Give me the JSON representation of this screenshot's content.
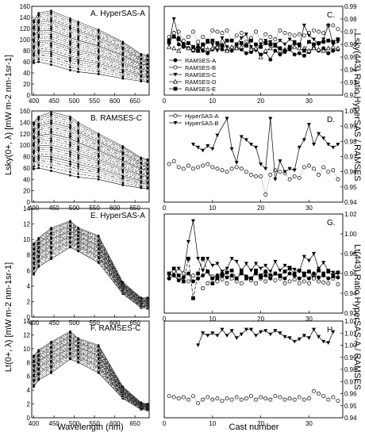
{
  "figure": {
    "left_ylabel_top": "Lsky(0+, λ) [mW m-2 nm-1sr-1]",
    "left_ylabel_bottom": "Lt(0+, λ) [mW m-2 nm-1sr-1]",
    "left_xlabel": "Wavelength (nm)",
    "right_ylabel_top": "Lsky(443) Ratio HyperSAS / RAMSES",
    "right_ylabel_bottom": "Lt(443) Ratio HyperSAS-A / RAMSES",
    "right_xlabel": "Cast number"
  },
  "chart_data": [
    {
      "id": "A",
      "type": "line",
      "title": "A. HyperSAS-A",
      "x_ticks": [
        400,
        450,
        500,
        550,
        600,
        650
      ],
      "y_ticks": [
        0,
        20,
        40,
        60,
        80,
        100,
        120,
        140,
        160
      ],
      "xlim": [
        395,
        685
      ],
      "ylim": [
        0,
        160
      ],
      "x": [
        400,
        412,
        443,
        490,
        510,
        560,
        620,
        665,
        681
      ],
      "series_envelope": {
        "min": [
          58,
          60,
          55,
          45,
          42,
          38,
          30,
          25,
          24
        ],
        "max": [
          135,
          148,
          152,
          138,
          132,
          118,
          96,
          74,
          72
        ]
      }
    },
    {
      "id": "B",
      "type": "line",
      "title": "B. RAMSES-C",
      "x_ticks": [
        400,
        450,
        500,
        550,
        600,
        650
      ],
      "y_ticks": [
        0,
        20,
        40,
        60,
        80,
        100,
        120,
        140,
        160
      ],
      "xlim": [
        395,
        685
      ],
      "ylim": [
        0,
        160
      ],
      "x": [
        400,
        412,
        443,
        490,
        510,
        560,
        620,
        665,
        681
      ],
      "series_envelope": {
        "min": [
          58,
          60,
          55,
          47,
          44,
          40,
          30,
          25,
          24
        ],
        "max": [
          140,
          150,
          158,
          150,
          140,
          120,
          98,
          78,
          75
        ]
      }
    },
    {
      "id": "E",
      "type": "line",
      "title": "E. HyperSAS-A",
      "x_ticks": [
        400,
        450,
        500,
        550,
        600,
        650
      ],
      "y_ticks": [
        0,
        2,
        4,
        6,
        8,
        10,
        12,
        14
      ],
      "xlim": [
        395,
        685
      ],
      "ylim": [
        0,
        14
      ],
      "x": [
        400,
        412,
        443,
        490,
        510,
        560,
        620,
        665,
        681
      ],
      "series_envelope": {
        "min": [
          5.5,
          6.5,
          7.5,
          9.0,
          8.5,
          7.0,
          3.0,
          1.2,
          1.1
        ],
        "max": [
          9.5,
          10.2,
          11.5,
          12.4,
          11.5,
          10.5,
          4.5,
          2.5,
          2.5
        ]
      }
    },
    {
      "id": "F",
      "type": "line",
      "title": "F. RAMSES-C",
      "x_ticks": [
        400,
        450,
        500,
        550,
        600,
        650
      ],
      "y_ticks": [
        0,
        2,
        4,
        6,
        8,
        10,
        12,
        14
      ],
      "xlim": [
        395,
        685
      ],
      "ylim": [
        0,
        14
      ],
      "x": [
        400,
        412,
        443,
        490,
        510,
        560,
        620,
        665,
        681
      ],
      "series_envelope": {
        "min": [
          4.5,
          5.5,
          6.5,
          8.5,
          8.0,
          6.5,
          2.8,
          1.2,
          1.1
        ],
        "max": [
          9.0,
          9.8,
          11.0,
          12.5,
          11.5,
          10.5,
          4.5,
          2.2,
          2.0
        ]
      }
    },
    {
      "id": "C",
      "type": "line",
      "title": "C.",
      "x_ticks": [
        0,
        10,
        20,
        30
      ],
      "y_ticks": [
        0.92,
        0.93,
        0.94,
        0.95,
        0.96,
        0.97,
        0.98,
        0.99
      ],
      "xlim": [
        0,
        37
      ],
      "ylim": [
        0.92,
        0.99
      ],
      "x": [
        1,
        2,
        3,
        4,
        5,
        6,
        7,
        8,
        9,
        10,
        11,
        12,
        13,
        14,
        15,
        16,
        17,
        18,
        19,
        20,
        21,
        22,
        23,
        24,
        25,
        26,
        27,
        28,
        29,
        30,
        31,
        32,
        33,
        34,
        35,
        36
      ],
      "legend": [
        "RAMSES-A",
        "RAMSES-B",
        "RAMSES-C",
        "RAMSES-D",
        "RAMSES-E"
      ],
      "series": [
        {
          "name": "RAMSES-A",
          "marker": "circle-filled",
          "values": [
            0.961,
            0.969,
            0.96,
            0.958,
            0.957,
            0.955,
            0.958,
            0.955,
            0.953,
            0.956,
            0.958,
            0.956,
            0.955,
            0.955,
            0.957,
            0.956,
            0.953,
            0.954,
            0.956,
            0.952,
            0.954,
            0.948,
            0.955,
            0.952,
            0.954,
            0.956,
            0.952,
            0.953,
            0.951,
            0.954,
            0.957,
            0.955,
            0.957,
            0.953,
            0.955,
            0.956
          ]
        },
        {
          "name": "RAMSES-B",
          "marker": "circle-open",
          "values": [
            0.966,
            0.969,
            0.97,
            0.963,
            0.966,
            0.97,
            0.962,
            0.966,
            0.963,
            0.971,
            0.97,
            0.969,
            0.971,
            0.963,
            0.967,
            0.969,
            0.962,
            0.965,
            0.97,
            0.963,
            0.968,
            0.966,
            0.964,
            0.971,
            0.969,
            0.968,
            0.967,
            0.968,
            0.967,
            0.969,
            0.971,
            0.97,
            0.969,
            0.975,
            0.975,
            0.972
          ]
        },
        {
          "name": "RAMSES-C",
          "marker": "triangle-down-filled",
          "values": [
            0.961,
            0.98,
            0.965,
            0.96,
            0.957,
            0.955,
            0.959,
            0.957,
            0.963,
            0.96,
            0.955,
            0.965,
            0.958,
            0.957,
            0.96,
            0.965,
            0.968,
            0.958,
            0.955,
            0.96,
            0.963,
            0.962,
            0.96,
            0.963,
            0.96,
            0.964,
            0.962,
            0.958,
            0.975,
            0.967,
            0.964,
            0.96,
            0.964,
            0.975,
            0.96,
            0.962
          ]
        },
        {
          "name": "RAMSES-D",
          "marker": "triangle-up-open",
          "values": [
            0.958,
            0.957,
            0.955,
            0.96,
            0.957,
            0.956,
            0.955,
            0.958,
            0.956,
            0.957,
            0.958,
            0.96,
            0.955,
            0.958,
            0.957,
            0.958,
            0.96,
            0.956,
            0.957,
            0.95,
            0.955,
            0.957,
            0.959,
            0.955,
            0.956,
            0.958,
            0.958,
            0.957,
            0.957,
            0.955,
            0.957,
            0.956,
            0.955,
            0.957,
            0.958,
            0.957
          ]
        },
        {
          "name": "RAMSES-E",
          "marker": "square-filled",
          "values": [
            0.963,
            0.966,
            0.964,
            0.96,
            0.961,
            0.958,
            0.955,
            0.96,
            0.962,
            0.963,
            0.961,
            0.959,
            0.963,
            0.963,
            0.96,
            0.961,
            0.959,
            0.963,
            0.96,
            0.958,
            0.961,
            0.96,
            0.959,
            0.957,
            0.955,
            0.958,
            0.961,
            0.96,
            0.955,
            0.962,
            0.96,
            0.961,
            0.962,
            0.963,
            0.962,
            0.964
          ]
        }
      ]
    },
    {
      "id": "D",
      "type": "line",
      "title": "D.",
      "x_ticks": [
        0,
        10,
        20,
        30
      ],
      "y_ticks": [
        0.94,
        0.95,
        0.96,
        0.97,
        0.98,
        0.99,
        1.0
      ],
      "xlim": [
        0,
        37
      ],
      "ylim": [
        0.94,
        1.0
      ],
      "legend": [
        "HyperSAS-A",
        "HyperSAS-B"
      ],
      "series": [
        {
          "name": "HyperSAS-A",
          "marker": "circle-open",
          "x": [
            1,
            2,
            3,
            4,
            5,
            6,
            7,
            8,
            9,
            10,
            11,
            12,
            13,
            14,
            15,
            16,
            17,
            18,
            19,
            20,
            21,
            22,
            23,
            24,
            25,
            26,
            27,
            28,
            29,
            30,
            31,
            32,
            33,
            34,
            35,
            36
          ],
          "values": [
            0.965,
            0.967,
            0.963,
            0.962,
            0.964,
            0.962,
            0.963,
            0.964,
            0.965,
            0.963,
            0.962,
            0.961,
            0.96,
            0.962,
            0.963,
            0.962,
            0.96,
            0.958,
            0.957,
            0.957,
            0.945,
            0.958,
            0.961,
            0.96,
            0.959,
            0.955,
            0.957,
            0.956,
            0.963,
            0.964,
            0.962,
            0.958,
            0.963,
            0.96,
            0.961,
            0.955
          ]
        },
        {
          "name": "HyperSAS-B",
          "marker": "triangle-down-filled",
          "x": [
            6,
            7,
            8,
            9,
            10,
            11,
            13,
            14,
            15,
            16,
            17,
            18,
            19,
            20,
            21,
            22,
            23,
            24,
            25,
            26,
            27,
            28,
            29,
            30,
            31,
            32,
            33,
            34,
            35,
            36
          ],
          "values": [
            0.978,
            0.976,
            0.974,
            0.977,
            0.975,
            0.984,
            0.995,
            0.975,
            0.966,
            0.983,
            0.981,
            0.978,
            0.976,
            0.965,
            0.962,
            0.995,
            0.955,
            0.967,
            0.96,
            0.962,
            0.961,
            0.976,
            0.981,
            0.991,
            0.978,
            0.985,
            0.982,
            0.978,
            0.976,
            0.978
          ]
        }
      ]
    },
    {
      "id": "G",
      "type": "line",
      "title": "G.",
      "x_ticks": [
        0,
        10,
        20,
        30
      ],
      "y_ticks": [
        0.92,
        0.94,
        0.96,
        0.98,
        1.0,
        1.02
      ],
      "xlim": [
        0,
        37
      ],
      "ylim": [
        0.92,
        1.02
      ],
      "x": [
        1,
        2,
        3,
        4,
        5,
        6,
        7,
        8,
        9,
        10,
        11,
        12,
        13,
        14,
        15,
        16,
        17,
        18,
        19,
        20,
        21,
        22,
        23,
        24,
        25,
        26,
        27,
        28,
        29,
        30,
        31,
        32,
        33,
        34,
        35,
        36
      ],
      "series": [
        {
          "name": "",
          "marker": "triangle-down-filled",
          "values": [
            0.958,
            0.96,
            0.965,
            0.96,
            0.992,
            1.013,
            0.975,
            0.963,
            0.975,
            0.968,
            0.97,
            0.962,
            0.965,
            0.975,
            0.972,
            0.963,
            0.97,
            0.963,
            0.97,
            0.965,
            0.968,
            0.962,
            0.972,
            0.963,
            0.968,
            0.966,
            0.964,
            0.962,
            0.977,
            0.973,
            0.98,
            0.965,
            0.971,
            0.963,
            0.961,
            0.96
          ]
        },
        {
          "name": "",
          "marker": "square-filled",
          "values": [
            0.96,
            0.965,
            0.958,
            0.952,
            0.975,
            0.935,
            0.96,
            0.975,
            0.962,
            0.95,
            0.955,
            0.958,
            0.961,
            0.963,
            0.955,
            0.963,
            0.955,
            0.955,
            0.963,
            0.958,
            0.962,
            0.958,
            0.96,
            0.958,
            0.962,
            0.965,
            0.96,
            0.963,
            0.96,
            0.962,
            0.956,
            0.963,
            0.96,
            0.962,
            0.958,
            0.961
          ]
        },
        {
          "name": "",
          "marker": "circle-open",
          "values": [
            0.955,
            0.962,
            0.955,
            0.96,
            0.952,
            0.958,
            0.955,
            0.945,
            0.95,
            0.957,
            0.952,
            0.954,
            0.95,
            0.955,
            0.952,
            0.95,
            0.957,
            0.953,
            0.95,
            0.955,
            0.952,
            0.956,
            0.953,
            0.955,
            0.95,
            0.952,
            0.954,
            0.95,
            0.952,
            0.95,
            0.955,
            0.952,
            0.951,
            0.95,
            0.955,
            0.949
          ]
        },
        {
          "name": "",
          "marker": "circle-filled",
          "values": [
            0.955,
            0.958,
            0.953,
            0.956,
            0.96,
            0.952,
            0.955,
            0.958,
            0.962,
            0.955,
            0.958,
            0.96,
            0.956,
            0.958,
            0.955,
            0.96,
            0.957,
            0.955,
            0.96,
            0.956,
            0.958,
            0.955,
            0.96,
            0.957,
            0.955,
            0.96,
            0.958,
            0.955,
            0.958,
            0.955,
            0.96,
            0.956,
            0.958,
            0.955,
            0.957,
            0.956
          ]
        }
      ]
    },
    {
      "id": "H",
      "type": "line",
      "title": "H.",
      "x_ticks": [
        0,
        10,
        20,
        30
      ],
      "y_ticks": [
        0.94,
        0.95,
        0.96,
        0.97,
        0.98,
        0.99,
        1.0,
        1.01,
        1.02
      ],
      "xlim": [
        0,
        37
      ],
      "ylim": [
        0.94,
        1.02
      ],
      "series": [
        {
          "name": "",
          "marker": "triangle-down-filled",
          "x": [
            7,
            8,
            9,
            10,
            11,
            12,
            13,
            14,
            15,
            16,
            17,
            18,
            19,
            20,
            21,
            22,
            23,
            24,
            25,
            26,
            27,
            28,
            29,
            30,
            31,
            32,
            33,
            34,
            35
          ],
          "values": [
            1.0,
            1.01,
            1.008,
            1.01,
            1.008,
            1.013,
            1.008,
            1.012,
            1.006,
            1.009,
            1.013,
            1.013,
            1.008,
            1.011,
            1.012,
            1.009,
            1.012,
            1.01,
            1.007,
            1.006,
            1.003,
            1.005,
            1.008,
            1.006,
            1.013,
            1.007,
            1.003,
            1.002,
            1.011
          ]
        },
        {
          "name": "",
          "marker": "circle-open",
          "x": [
            1,
            2,
            3,
            4,
            5,
            6,
            7,
            8,
            9,
            10,
            11,
            12,
            13,
            14,
            15,
            16,
            17,
            18,
            19,
            20,
            21,
            22,
            23,
            24,
            25,
            26,
            27,
            28,
            29,
            30,
            31,
            32,
            33,
            34,
            35,
            36
          ],
          "values": [
            0.958,
            0.957,
            0.956,
            0.957,
            0.955,
            0.958,
            0.952,
            0.955,
            0.957,
            0.955,
            0.956,
            0.954,
            0.956,
            0.955,
            0.957,
            0.955,
            0.956,
            0.958,
            0.955,
            0.957,
            0.956,
            0.955,
            0.958,
            0.957,
            0.955,
            0.956,
            0.955,
            0.957,
            0.955,
            0.956,
            0.962,
            0.96,
            0.958,
            0.955,
            0.957,
            0.954
          ]
        }
      ]
    }
  ]
}
